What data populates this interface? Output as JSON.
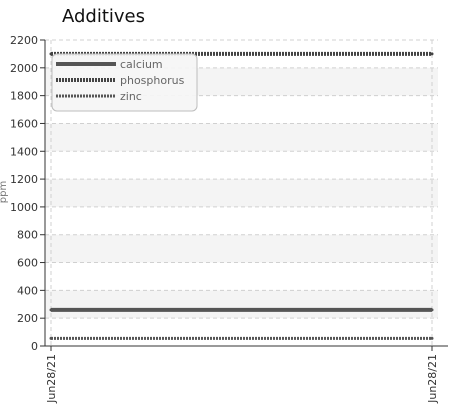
{
  "chart_data": {
    "type": "line",
    "title": "Additives",
    "xlabel": "",
    "ylabel": "ppm",
    "x": [
      "Jun28/21",
      "Jun28/21"
    ],
    "ylim": [
      0,
      2200
    ],
    "yticks": [
      0,
      200,
      400,
      600,
      800,
      1000,
      1200,
      1400,
      1600,
      1800,
      2000,
      2200
    ],
    "grid": true,
    "legend_position": "top-left",
    "series": [
      {
        "name": "calcium",
        "values": [
          260,
          260
        ],
        "style": "solid",
        "color": "#555555"
      },
      {
        "name": "phosphorus",
        "values": [
          2100,
          2100
        ],
        "style": "dense-dashed",
        "color": "#444444"
      },
      {
        "name": "zinc",
        "values": [
          55,
          55
        ],
        "style": "dense-dashed-thin",
        "color": "#555555"
      }
    ]
  }
}
